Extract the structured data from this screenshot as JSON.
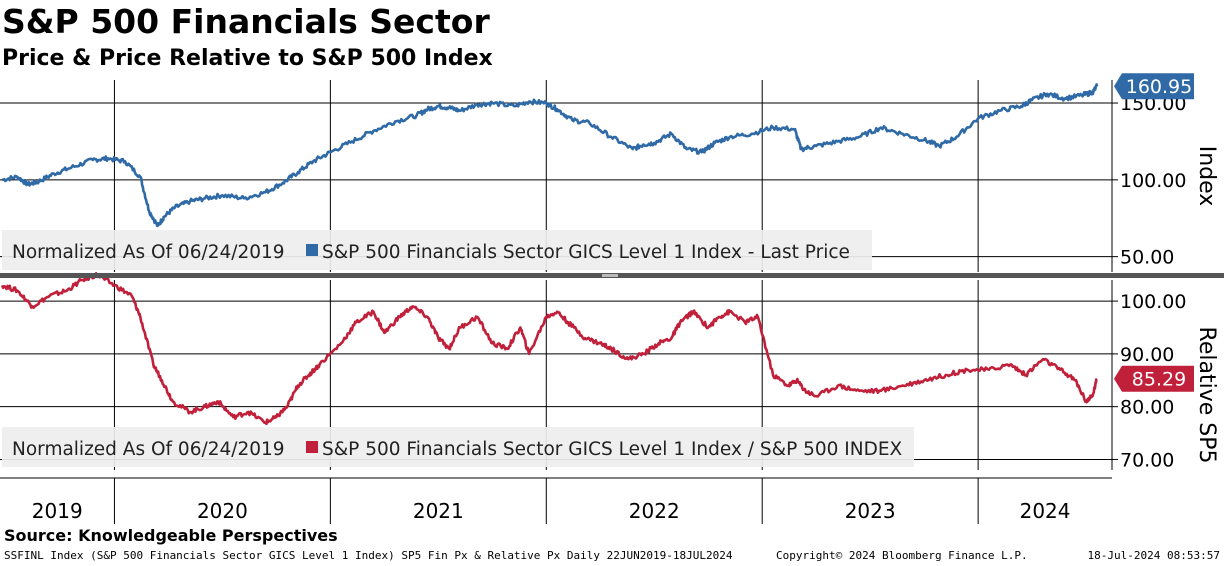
{
  "title": "S&P 500 Financials Sector",
  "subtitle": "Price & Price Relative to S&P 500 Index",
  "source": "Source: Knowledgeable Perspectives",
  "footer": {
    "left": "SSFINL Index (S&P 500 Financials Sector GICS Level 1 Index) SP5 Fin Px & Relative Px  Daily 22JUN2019-18JUL2024",
    "middle": "Copyright© 2024 Bloomberg Finance L.P.",
    "right": "18-Jul-2024 08:53:57"
  },
  "colors": {
    "price": "#2f6aa6",
    "relative": "#c0203a",
    "grid": "#000000",
    "legend_bg": "#eeeeee"
  },
  "chart_data": [
    {
      "type": "line",
      "panel": "top",
      "ylabel": "Index",
      "ylim": [
        40,
        165
      ],
      "yticks": [
        "50.00",
        "100.00",
        "150.00"
      ],
      "ytick_values": [
        50,
        100,
        150
      ],
      "legend_note": "Normalized As Of 06/24/2019",
      "legend_entry": "S&P 500 Financials Sector GICS Level 1 Index - Last Price",
      "last_value_label": "160.95",
      "last_value": 160.95,
      "series": [
        {
          "name": "S&P 500 Financials Sector GICS Level 1 Index - Last Price",
          "x": [
            2019.48,
            2019.55,
            2019.6,
            2019.65,
            2019.72,
            2019.8,
            2019.9,
            2019.97,
            2020.05,
            2020.12,
            2020.16,
            2020.2,
            2020.23,
            2020.28,
            2020.35,
            2020.42,
            2020.5,
            2020.6,
            2020.7,
            2020.78,
            2020.85,
            2020.92,
            2021.0,
            2021.1,
            2021.2,
            2021.3,
            2021.4,
            2021.45,
            2021.5,
            2021.55,
            2021.6,
            2021.68,
            2021.75,
            2021.85,
            2021.92,
            2022.0,
            2022.05,
            2022.12,
            2022.2,
            2022.3,
            2022.4,
            2022.45,
            2022.5,
            2022.58,
            2022.65,
            2022.72,
            2022.78,
            2022.85,
            2022.95,
            2023.05,
            2023.15,
            2023.18,
            2023.25,
            2023.35,
            2023.45,
            2023.55,
            2023.65,
            2023.75,
            2023.82,
            2023.9,
            2024.0,
            2024.1,
            2024.2,
            2024.25,
            2024.32,
            2024.4,
            2024.48,
            2024.53,
            2024.55
          ],
          "values": [
            100,
            102,
            97,
            99,
            104,
            108,
            113,
            114,
            112,
            102,
            80,
            70,
            76,
            82,
            86,
            88,
            90,
            88,
            92,
            98,
            105,
            112,
            118,
            125,
            132,
            138,
            142,
            146,
            148,
            147,
            145,
            149,
            150,
            148,
            151,
            150,
            146,
            139,
            137,
            128,
            120,
            123,
            124,
            130,
            120,
            118,
            124,
            128,
            130,
            134,
            133,
            120,
            122,
            125,
            128,
            134,
            130,
            126,
            122,
            128,
            140,
            145,
            148,
            152,
            156,
            153,
            155,
            157,
            160.95
          ]
        }
      ]
    },
    {
      "type": "line",
      "panel": "bottom",
      "ylabel": "Relative SP5",
      "ylim": [
        68,
        104
      ],
      "yticks": [
        "70.00",
        "80.00",
        "90.00",
        "100.00"
      ],
      "ytick_values": [
        70,
        80,
        90,
        100
      ],
      "legend_note": "Normalized As Of 06/24/2019",
      "legend_entry": "S&P 500 Financials Sector GICS Level 1 Index / S&P 500 INDEX",
      "last_value_label": "85.29",
      "last_value": 85.29,
      "series": [
        {
          "name": "S&P 500 Financials Sector GICS Level 1 Index / S&P 500 INDEX",
          "x": [
            2019.48,
            2019.55,
            2019.62,
            2019.7,
            2019.78,
            2019.85,
            2019.92,
            2020.0,
            2020.08,
            2020.12,
            2020.18,
            2020.22,
            2020.27,
            2020.35,
            2020.42,
            2020.48,
            2020.55,
            2020.62,
            2020.7,
            2020.75,
            2020.8,
            2020.85,
            2020.9,
            2020.95,
            2021.05,
            2021.12,
            2021.2,
            2021.25,
            2021.32,
            2021.38,
            2021.45,
            2021.5,
            2021.55,
            2021.6,
            2021.68,
            2021.75,
            2021.82,
            2021.88,
            2021.92,
            2022.0,
            2022.05,
            2022.1,
            2022.18,
            2022.25,
            2022.3,
            2022.38,
            2022.45,
            2022.52,
            2022.58,
            2022.62,
            2022.68,
            2022.75,
            2022.8,
            2022.85,
            2022.92,
            2022.98,
            2023.05,
            2023.12,
            2023.16,
            2023.2,
            2023.25,
            2023.35,
            2023.45,
            2023.55,
            2023.65,
            2023.75,
            2023.85,
            2023.95,
            2024.05,
            2024.15,
            2024.22,
            2024.3,
            2024.38,
            2024.45,
            2024.5,
            2024.53,
            2024.55
          ],
          "values": [
            103,
            102,
            99,
            101,
            102,
            104,
            105,
            103,
            101,
            97,
            88,
            85,
            81,
            79,
            80,
            81,
            78,
            79,
            77,
            78,
            80,
            84,
            86,
            88,
            92,
            96,
            98,
            94,
            97,
            99,
            97,
            93,
            91,
            95,
            97,
            92,
            91,
            95,
            90,
            97,
            98,
            96,
            93,
            92,
            91,
            89,
            90,
            92,
            93,
            96,
            98,
            95,
            97,
            98,
            96,
            97,
            86,
            84,
            85,
            83,
            82,
            84,
            83,
            83,
            84,
            85,
            86,
            87,
            87,
            88,
            86,
            89,
            87,
            85,
            81,
            82,
            85.29
          ]
        }
      ]
    }
  ],
  "x_axis": {
    "years": [
      "2019",
      "2020",
      "2021",
      "2022",
      "2023",
      "2024"
    ],
    "year_starts": [
      2020.0,
      2021.0,
      2022.0,
      2023.0,
      2024.0
    ],
    "xlim": [
      2019.47,
      2024.62
    ]
  }
}
